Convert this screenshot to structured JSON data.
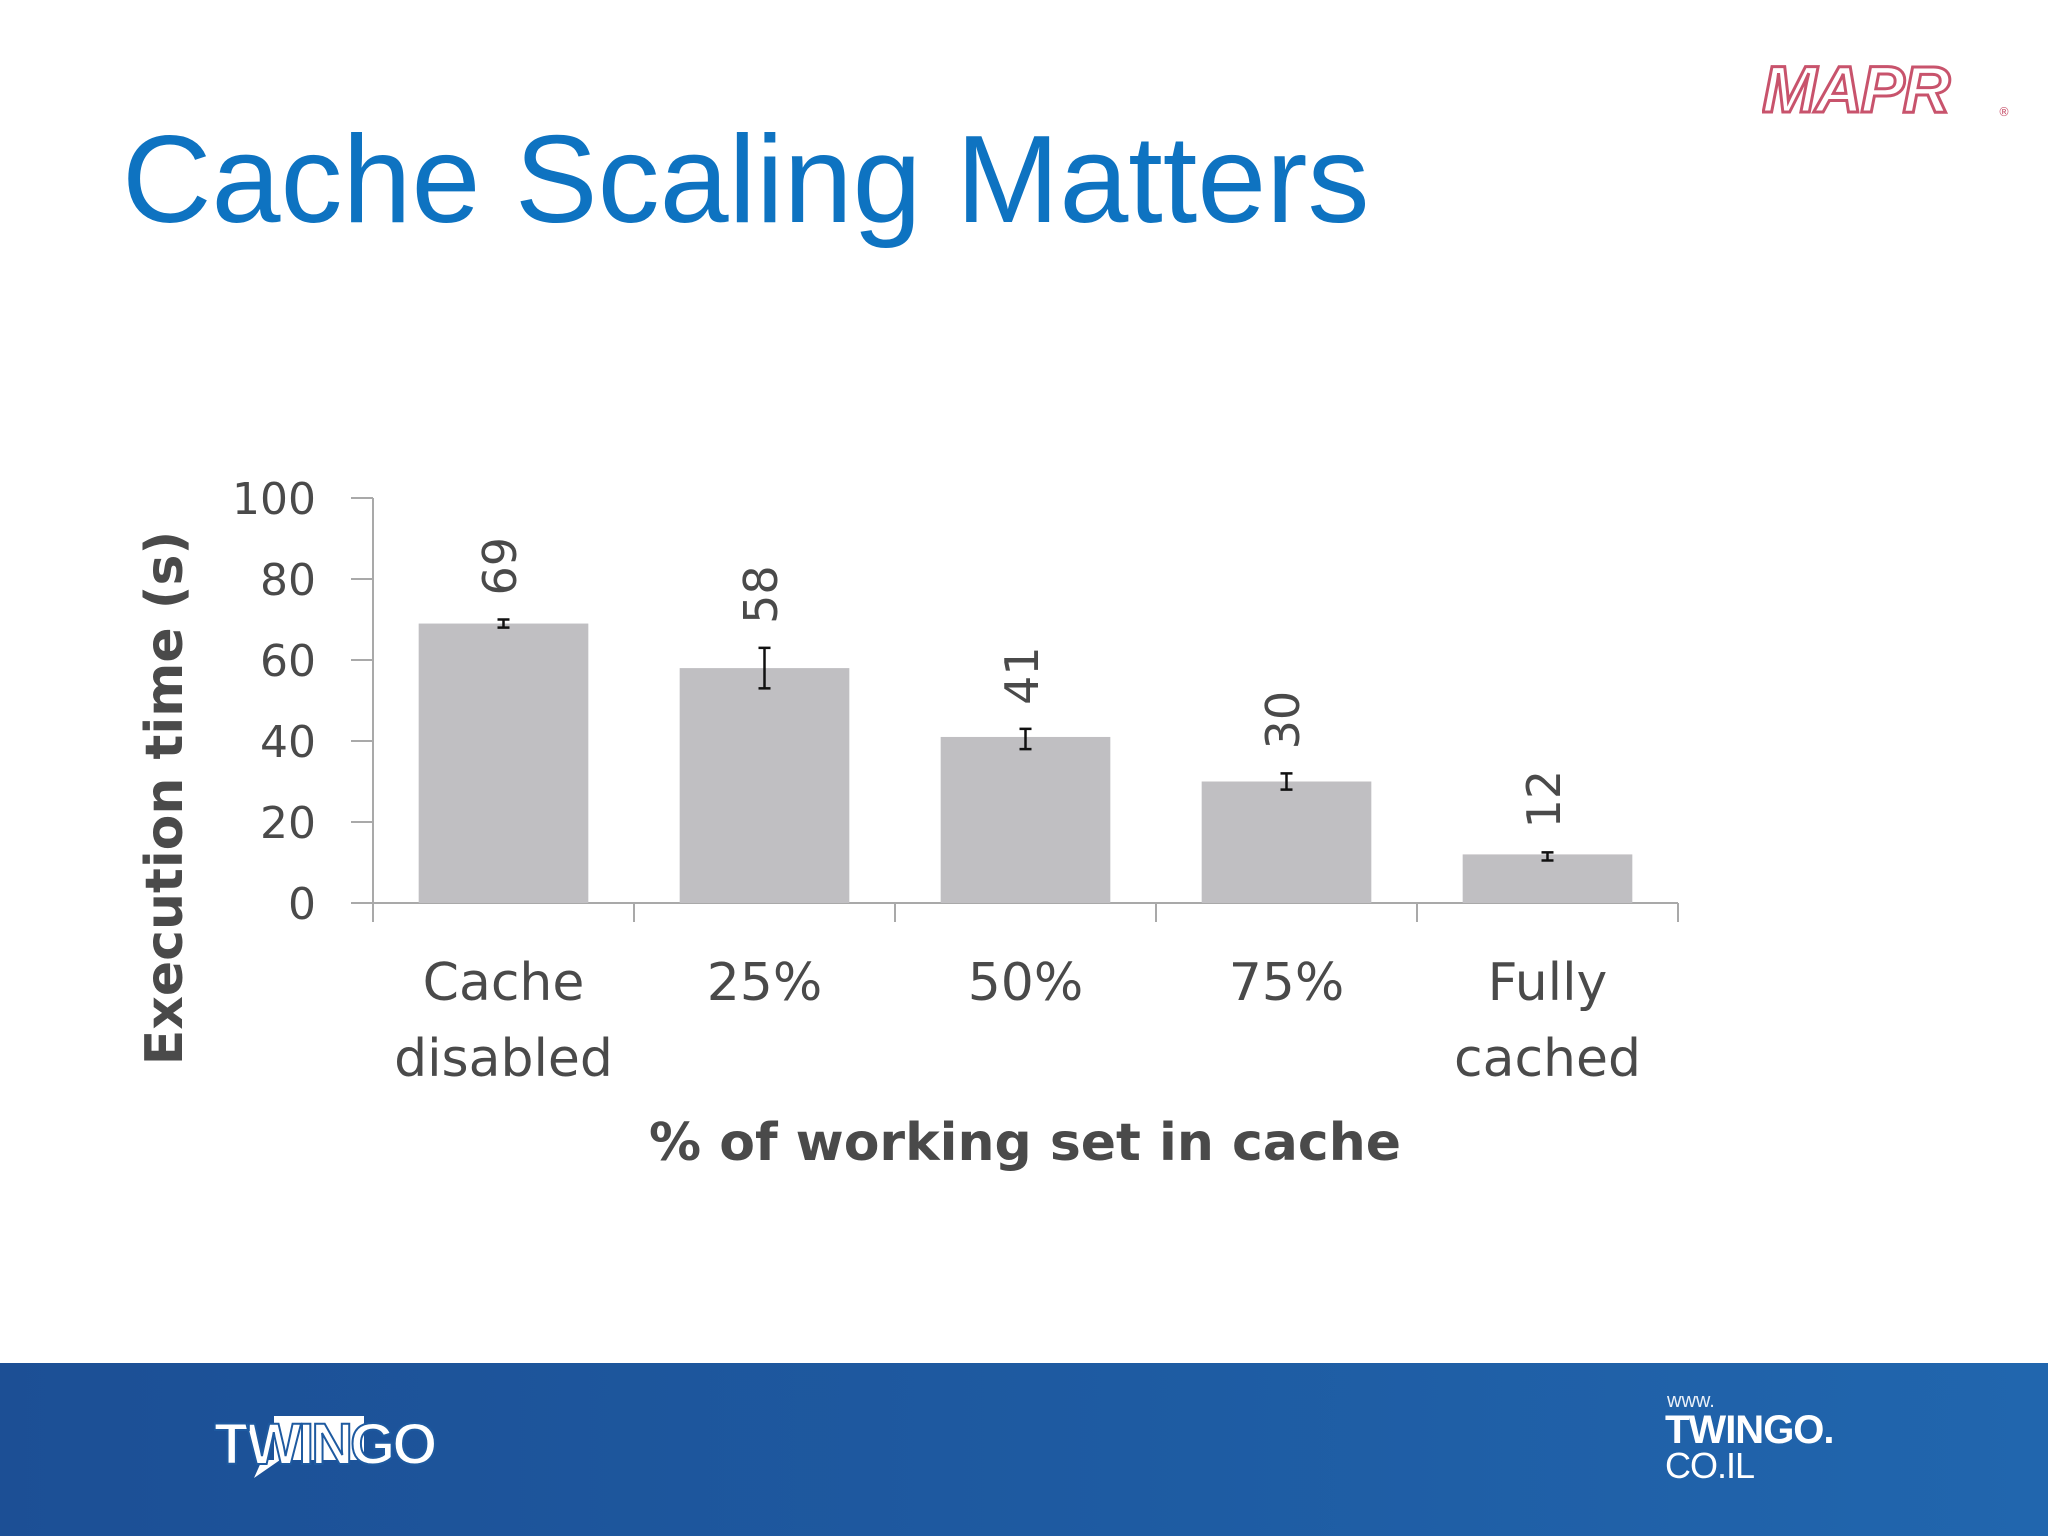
{
  "slide": {
    "title": "Cache Scaling Matters",
    "mapr_logo_text": "MAPR",
    "footer": {
      "twingo_logo_text": "TWINGO",
      "site_www": "www.",
      "site_name": "TWINGO.",
      "site_tld": "CO.IL",
      "background_color": "#1e5aa0"
    },
    "title_color": "#0e73c1"
  },
  "chart_data": {
    "type": "bar",
    "title": "",
    "xlabel": "% of working set in cache",
    "ylabel": "Execution time (s)",
    "categories": [
      "Cache disabled",
      "25%",
      "50%",
      "75%",
      "Fully cached"
    ],
    "category_lines": [
      [
        "Cache",
        "disabled"
      ],
      [
        "25%"
      ],
      [
        "50%"
      ],
      [
        "75%"
      ],
      [
        "Fully",
        "cached"
      ]
    ],
    "values": [
      69,
      58,
      41,
      30,
      12
    ],
    "data_labels": [
      "69",
      "58",
      "41",
      "30",
      "12"
    ],
    "error_bars": [
      [
        68,
        70
      ],
      [
        53,
        63
      ],
      [
        38,
        43
      ],
      [
        28,
        32
      ],
      [
        10.5,
        12.5
      ]
    ],
    "ylim": [
      0,
      100
    ],
    "yticks": [
      0,
      20,
      40,
      60,
      80,
      100
    ],
    "ytick_labels": [
      "0",
      "20",
      "40",
      "60",
      "80",
      "100"
    ],
    "grid": false,
    "legend": "none",
    "bar_color": "#c0bfc2"
  }
}
